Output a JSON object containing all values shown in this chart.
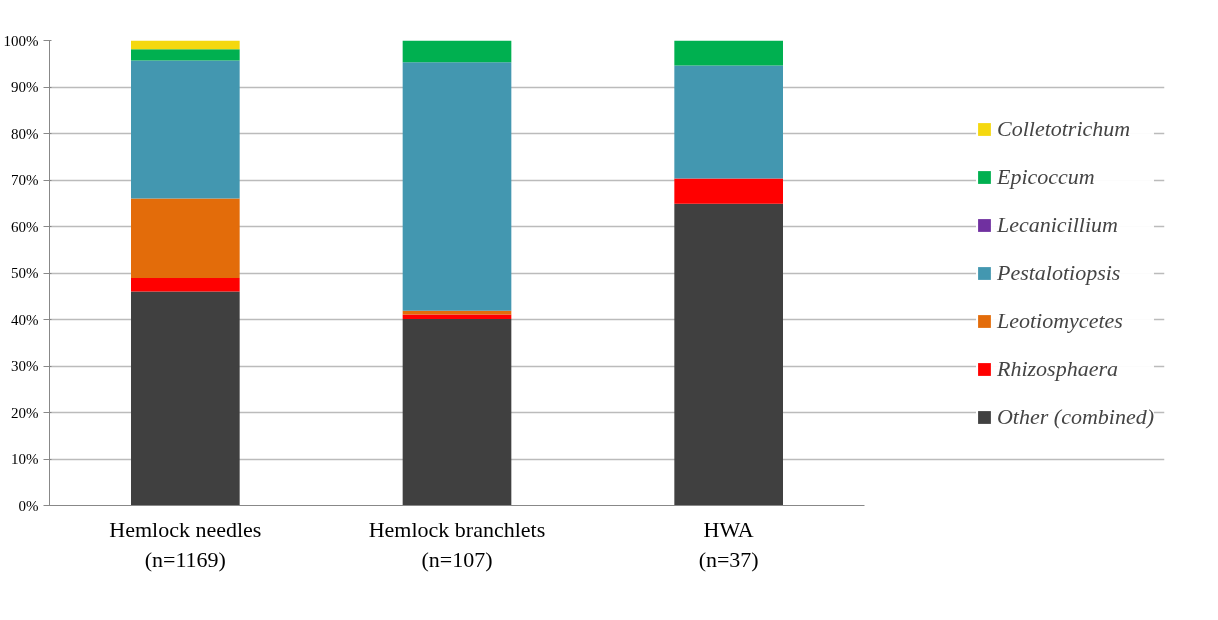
{
  "chart_data": {
    "type": "bar",
    "stacked": true,
    "categories": [
      "Hemlock needles\n(n=1169)",
      "Hemlock branchlets\n(n=107)",
      "HWA\n(n=37)"
    ],
    "series": [
      {
        "name": "Other (combined)",
        "color": "#404040",
        "values": [
          46.0,
          40.1,
          64.9
        ]
      },
      {
        "name": "Rhizosphaera",
        "color": "#ff0000",
        "values": [
          2.9,
          1.0,
          5.4
        ]
      },
      {
        "name": "Leotiomycetes",
        "color": "#e36c0a",
        "values": [
          17.1,
          0.8,
          0
        ]
      },
      {
        "name": "Pestalotiopsis",
        "color": "#4397b0",
        "values": [
          29.7,
          53.4,
          24.3
        ]
      },
      {
        "name": "Lecanicillium",
        "color": "#7030a0",
        "values": [
          0,
          0,
          0
        ]
      },
      {
        "name": "Epicoccum",
        "color": "#00b050",
        "values": [
          2.4,
          4.7,
          5.4
        ]
      },
      {
        "name": "Colletotrichum",
        "color": "#f5d80f",
        "values": [
          1.9,
          0,
          0
        ]
      }
    ],
    "ylim": [
      0,
      100
    ],
    "yticks": [
      {
        "value": 0,
        "label": "0%"
      },
      {
        "value": 10,
        "label": "10%"
      },
      {
        "value": 20,
        "label": "20%"
      },
      {
        "value": 30,
        "label": "30%"
      },
      {
        "value": 40,
        "label": "40%"
      },
      {
        "value": 50,
        "label": "50%"
      },
      {
        "value": 60,
        "label": "60%"
      },
      {
        "value": 70,
        "label": "70%"
      },
      {
        "value": 80,
        "label": "80%"
      },
      {
        "value": 90,
        "label": "90%"
      },
      {
        "value": 100,
        "label": "100%"
      }
    ],
    "grid": "y",
    "legend": "right"
  }
}
